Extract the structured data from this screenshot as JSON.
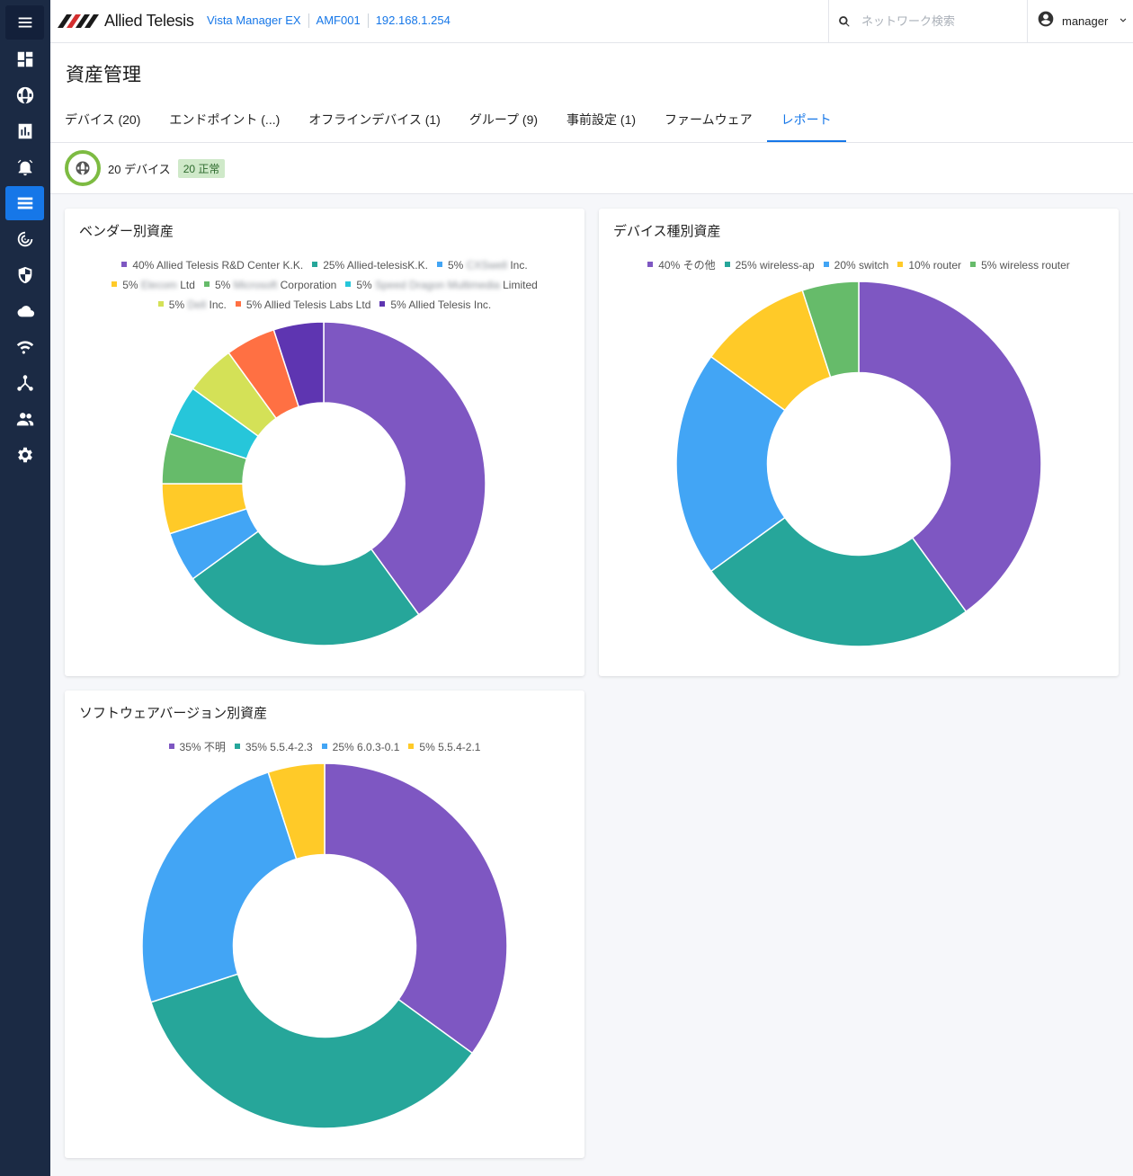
{
  "brand": {
    "logo_text": "Allied Telesis"
  },
  "header": {
    "breadcrumbs": [
      "Vista Manager EX",
      "AMF001",
      "192.168.1.254"
    ],
    "search_placeholder": "ネットワーク検索",
    "user": "manager"
  },
  "page": {
    "title": "資産管理"
  },
  "tabs": [
    {
      "label": "デバイス (20)"
    },
    {
      "label": "エンドポイント (...)"
    },
    {
      "label": "オフラインデバイス (1)"
    },
    {
      "label": "グループ (9)"
    },
    {
      "label": "事前設定 (1)"
    },
    {
      "label": "ファームウェア"
    },
    {
      "label": "レポート"
    }
  ],
  "status": {
    "devices": "20 デバイス",
    "ok_badge": "20 正常"
  },
  "colors": {
    "purple": "#7e57c2",
    "teal": "#26a69a",
    "blue": "#42a5f5",
    "yellow": "#ffca28",
    "green": "#66bb6a",
    "cyan": "#26c6da",
    "lime": "#d4e157",
    "orange": "#ff7043",
    "deeppurple": "#5e35b1"
  },
  "chart_data": [
    {
      "type": "pie",
      "title": "ベンダー別資産",
      "series": [
        {
          "pct": "40%",
          "name": "Allied Telesis R&D Center K.K.",
          "value": 40,
          "color": "#7e57c2"
        },
        {
          "pct": "25%",
          "name": "Allied-telesisK.K.",
          "value": 25,
          "color": "#26a69a"
        },
        {
          "pct": "5%",
          "name_blur": "CXSwell",
          "name": "Inc.",
          "value": 5,
          "color": "#42a5f5"
        },
        {
          "pct": "5%",
          "name_blur": "Elecom",
          "name": "Ltd",
          "value": 5,
          "color": "#ffca28"
        },
        {
          "pct": "5%",
          "name_blur": "Microsoft",
          "name": "Corporation",
          "value": 5,
          "color": "#66bb6a"
        },
        {
          "pct": "5%",
          "name_blur": "Speed Dragon Multimedia",
          "name": "Limited",
          "value": 5,
          "color": "#26c6da"
        },
        {
          "pct": "5%",
          "name_blur": "Dell",
          "name": "Inc.",
          "value": 5,
          "color": "#d4e157"
        },
        {
          "pct": "5%",
          "name": "Allied Telesis Labs Ltd",
          "value": 5,
          "color": "#ff7043"
        },
        {
          "pct": "5%",
          "name": "Allied Telesis Inc.",
          "value": 5,
          "color": "#5e35b1"
        }
      ]
    },
    {
      "type": "pie",
      "title": "デバイス種別資産",
      "series": [
        {
          "pct": "40%",
          "name": "その他",
          "value": 40,
          "color": "#7e57c2"
        },
        {
          "pct": "25%",
          "name": "wireless-ap",
          "value": 25,
          "color": "#26a69a"
        },
        {
          "pct": "20%",
          "name": "switch",
          "value": 20,
          "color": "#42a5f5"
        },
        {
          "pct": "10%",
          "name": "router",
          "value": 10,
          "color": "#ffca28"
        },
        {
          "pct": "5%",
          "name": "wireless router",
          "value": 5,
          "color": "#66bb6a"
        }
      ]
    },
    {
      "type": "pie",
      "title": "ソフトウェアバージョン別資産",
      "series": [
        {
          "pct": "35%",
          "name": "不明",
          "value": 35,
          "color": "#7e57c2"
        },
        {
          "pct": "35%",
          "name": "5.5.4-2.3",
          "value": 35,
          "color": "#26a69a"
        },
        {
          "pct": "25%",
          "name": "6.0.3-0.1",
          "value": 25,
          "color": "#42a5f5"
        },
        {
          "pct": "5%",
          "name": "5.5.4-2.1",
          "value": 5,
          "color": "#ffca28"
        }
      ]
    }
  ]
}
